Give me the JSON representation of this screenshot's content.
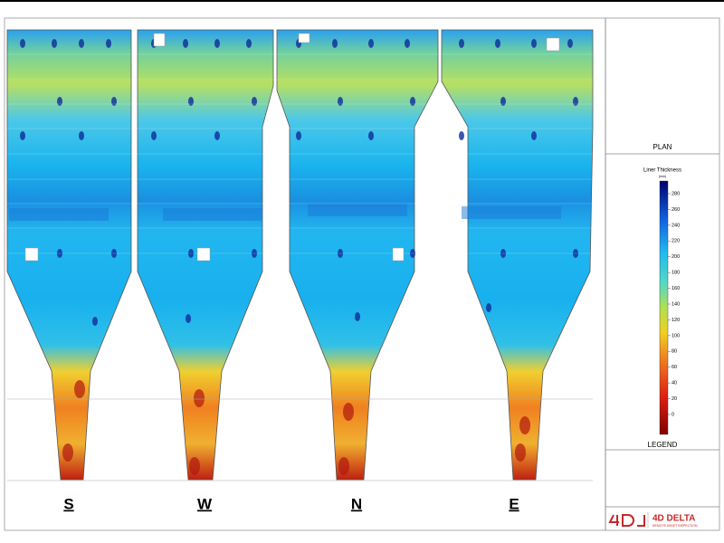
{
  "views": [
    {
      "label": "S"
    },
    {
      "label": "W"
    },
    {
      "label": "N"
    },
    {
      "label": "E"
    }
  ],
  "plan": {
    "label": "PLAN"
  },
  "legend": {
    "title": "Liner Thickness",
    "unit": "(mm)",
    "ticks": [
      0,
      20,
      40,
      60,
      80,
      100,
      120,
      140,
      160,
      180,
      200,
      220,
      240,
      260,
      280
    ],
    "label": "LEGEND"
  },
  "logo": {
    "name": "4D DELTA",
    "tagline": "REMOTE ASSET INSPECTION"
  }
}
